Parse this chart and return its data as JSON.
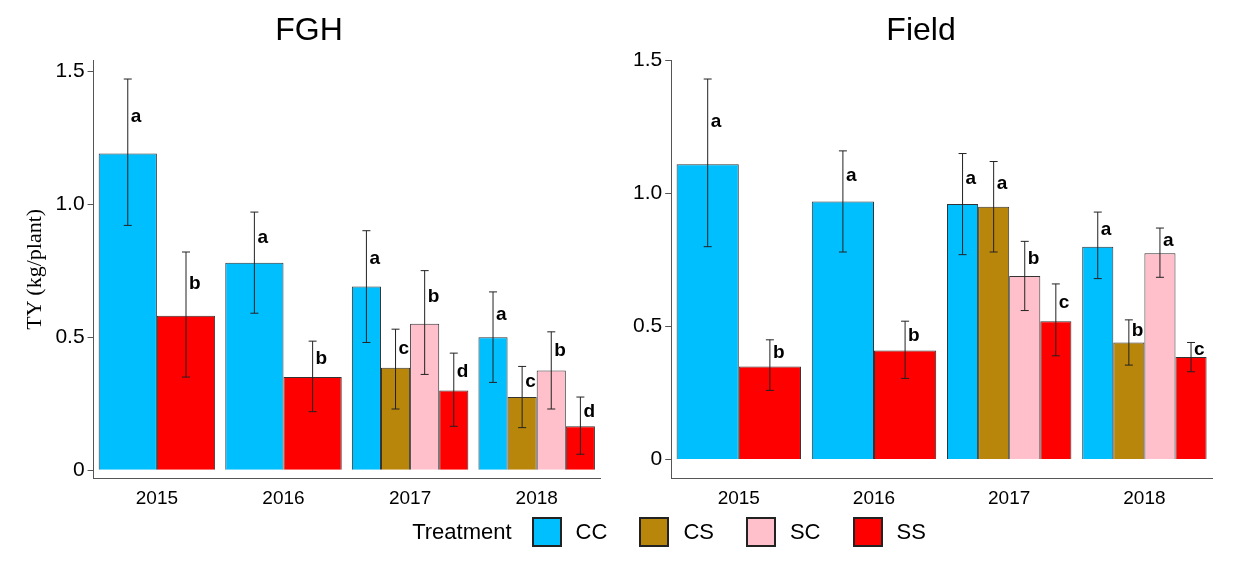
{
  "chart_data": [
    {
      "type": "bar",
      "title": "FGH",
      "ylabel": "TY (kg/plant)",
      "categories": [
        "2015",
        "2016",
        "2017",
        "2018"
      ],
      "ylim": [
        -0.03,
        1.54
      ],
      "yticks": [
        0,
        0.5,
        {
          "value": 1,
          "label": "1.0"
        },
        1.5
      ],
      "legend": "bottom",
      "legend_title": "Treatment",
      "series": [
        {
          "name": "CC",
          "color": "#00bfff",
          "values": [
            1.19,
            0.78,
            0.69,
            0.5
          ],
          "errors": [
            [
              0.92,
              1.47
            ],
            [
              0.59,
              0.97
            ],
            [
              0.48,
              0.9
            ],
            [
              0.33,
              0.67
            ]
          ],
          "value_labels": [
            "a",
            "a",
            "a",
            "a"
          ]
        },
        {
          "name": "CS",
          "color": "#b8860b",
          "values": [
            null,
            null,
            0.385,
            0.275
          ],
          "errors": [
            null,
            null,
            [
              0.23,
              0.53
            ],
            [
              0.16,
              0.39
            ]
          ],
          "value_labels": [
            null,
            null,
            "c",
            "c"
          ]
        },
        {
          "name": "SC",
          "color": "#ffc0cb",
          "values": [
            null,
            null,
            0.55,
            0.375
          ],
          "errors": [
            null,
            null,
            [
              0.36,
              0.75
            ],
            [
              0.23,
              0.52
            ]
          ],
          "value_labels": [
            null,
            null,
            "b",
            "b"
          ]
        },
        {
          "name": "SS",
          "color": "#ff0000",
          "values": [
            0.58,
            0.35,
            0.3,
            0.165
          ],
          "errors": [
            [
              0.35,
              0.82
            ],
            [
              0.22,
              0.485
            ],
            [
              0.165,
              0.44
            ],
            [
              0.06,
              0.275
            ]
          ],
          "value_labels": [
            "b",
            "b",
            "d",
            "d"
          ]
        }
      ]
    },
    {
      "type": "bar",
      "title": "Field",
      "categories": [
        "2015",
        "2016",
        "2017",
        "2018"
      ],
      "ylim": [
        -0.07,
        1.5
      ],
      "yticks": [
        0,
        0.5,
        {
          "value": 1,
          "label": "1.0"
        },
        1.5
      ],
      "series": [
        {
          "color": "#00bfff",
          "values": [
            1.11,
            0.97,
            0.96,
            0.8
          ],
          "errors": [
            [
              0.8,
              1.43
            ],
            [
              0.78,
              1.16
            ],
            [
              0.77,
              1.15
            ],
            [
              0.68,
              0.93
            ]
          ],
          "value_labels": [
            "a",
            "a",
            "a",
            "a"
          ]
        },
        {
          "color": "#b8860b",
          "values": [
            null,
            null,
            0.95,
            0.44
          ],
          "errors": [
            null,
            null,
            [
              0.78,
              1.12
            ],
            [
              0.355,
              0.525
            ]
          ],
          "value_labels": [
            null,
            null,
            "a",
            "b"
          ]
        },
        {
          "color": "#ffc0cb",
          "values": [
            null,
            null,
            0.69,
            0.775
          ],
          "errors": [
            null,
            null,
            [
              0.56,
              0.82
            ],
            [
              0.685,
              0.87
            ]
          ],
          "value_labels": [
            null,
            null,
            "b",
            "a"
          ]
        },
        {
          "color": "#ff0000",
          "values": [
            0.35,
            0.41,
            0.52,
            0.385
          ],
          "errors": [
            [
              0.26,
              0.45
            ],
            [
              0.305,
              0.52
            ],
            [
              0.39,
              0.66
            ],
            [
              0.33,
              0.44
            ]
          ],
          "value_labels": [
            "b",
            "b",
            "c",
            "c"
          ]
        }
      ]
    }
  ]
}
